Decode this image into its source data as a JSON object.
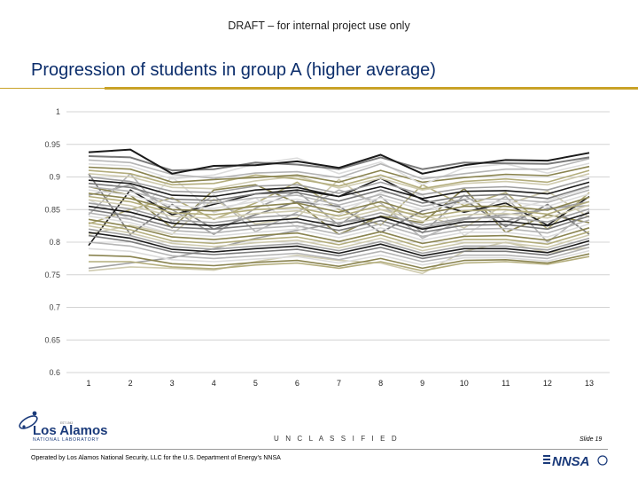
{
  "header": {
    "draft": "DRAFT – for internal project use only",
    "title": "Progression of students in group A (higher average)"
  },
  "footer": {
    "classification": "U N C L A S S I F I E D",
    "slide": "Slide 19",
    "operated_by": "Operated by Los Alamos National Security, LLC for the U.S. Department of Energy’s NNSA",
    "logo_text": "Los Alamos",
    "logo_sub": "NATIONAL LABORATORY",
    "logo_est": "EST 1943",
    "nnsa_text": "NNSA"
  },
  "colors": {
    "title": "#0b2d6b",
    "accent_rule": "#c9a227",
    "series_palette": [
      "#1a1a1a",
      "#7a7a7a",
      "#b5b5b5",
      "#dcdcdc",
      "#8a8450",
      "#b3ad7c",
      "#cfcbb0",
      "#a0a0a0"
    ]
  },
  "chart_data": {
    "type": "line",
    "title": "",
    "xlabel": "",
    "ylabel": "",
    "x": [
      1,
      2,
      3,
      4,
      5,
      6,
      7,
      8,
      9,
      10,
      11,
      12,
      13
    ],
    "ylim": [
      0.6,
      1.0
    ],
    "yticks": [
      "1",
      "0.95",
      "0.9",
      "0.85",
      "0.8",
      "0.75",
      "0.7",
      "0.65",
      "0.6"
    ],
    "xticks": [
      "1",
      "2",
      "3",
      "4",
      "5",
      "6",
      "7",
      "8",
      "9",
      "10",
      "11",
      "12",
      "13"
    ],
    "grid": true,
    "legend": "none",
    "series": [
      {
        "values": [
          0.938,
          0.942,
          0.905,
          0.917,
          0.918,
          0.924,
          0.914,
          0.934,
          0.905,
          0.918,
          0.926,
          0.925,
          0.937
        ]
      },
      {
        "values": [
          0.932,
          0.93,
          0.91,
          0.912,
          0.922,
          0.919,
          0.912,
          0.93,
          0.912,
          0.922,
          0.921,
          0.92,
          0.93
        ]
      },
      {
        "values": [
          0.926,
          0.922,
          0.904,
          0.898,
          0.906,
          0.908,
          0.899,
          0.92,
          0.897,
          0.905,
          0.912,
          0.912,
          0.928
        ]
      },
      {
        "values": [
          0.92,
          0.917,
          0.897,
          0.903,
          0.92,
          0.929,
          0.905,
          0.923,
          0.888,
          0.914,
          0.92,
          0.906,
          0.921
        ]
      },
      {
        "values": [
          0.915,
          0.912,
          0.892,
          0.896,
          0.899,
          0.903,
          0.892,
          0.91,
          0.892,
          0.899,
          0.904,
          0.902,
          0.916
        ]
      },
      {
        "values": [
          0.91,
          0.905,
          0.888,
          0.89,
          0.903,
          0.897,
          0.886,
          0.903,
          0.882,
          0.893,
          0.897,
          0.892,
          0.91
        ]
      },
      {
        "values": [
          0.905,
          0.9,
          0.884,
          0.882,
          0.894,
          0.901,
          0.883,
          0.898,
          0.88,
          0.89,
          0.893,
          0.888,
          0.905
        ]
      },
      {
        "values": [
          0.9,
          0.893,
          0.878,
          0.876,
          0.886,
          0.888,
          0.875,
          0.892,
          0.873,
          0.883,
          0.885,
          0.88,
          0.898
        ]
      },
      {
        "values": [
          0.895,
          0.89,
          0.872,
          0.87,
          0.88,
          0.884,
          0.87,
          0.885,
          0.867,
          0.878,
          0.879,
          0.874,
          0.892
        ]
      },
      {
        "values": [
          0.89,
          0.884,
          0.866,
          0.864,
          0.874,
          0.876,
          0.863,
          0.88,
          0.86,
          0.871,
          0.873,
          0.867,
          0.886
        ]
      },
      {
        "values": [
          0.885,
          0.878,
          0.861,
          0.86,
          0.868,
          0.872,
          0.857,
          0.873,
          0.855,
          0.866,
          0.866,
          0.861,
          0.88
        ]
      },
      {
        "values": [
          0.88,
          0.872,
          0.856,
          0.852,
          0.862,
          0.866,
          0.852,
          0.868,
          0.85,
          0.86,
          0.862,
          0.855,
          0.874
        ]
      },
      {
        "values": [
          0.875,
          0.867,
          0.85,
          0.848,
          0.855,
          0.86,
          0.846,
          0.862,
          0.843,
          0.855,
          0.855,
          0.849,
          0.869
        ]
      },
      {
        "values": [
          0.87,
          0.862,
          0.845,
          0.842,
          0.85,
          0.853,
          0.84,
          0.856,
          0.838,
          0.848,
          0.85,
          0.843,
          0.862
        ]
      },
      {
        "values": [
          0.865,
          0.856,
          0.84,
          0.836,
          0.844,
          0.848,
          0.835,
          0.85,
          0.832,
          0.842,
          0.844,
          0.837,
          0.857
        ]
      },
      {
        "values": [
          0.86,
          0.851,
          0.834,
          0.83,
          0.838,
          0.842,
          0.829,
          0.845,
          0.826,
          0.837,
          0.838,
          0.831,
          0.851
        ]
      },
      {
        "values": [
          0.855,
          0.846,
          0.829,
          0.825,
          0.832,
          0.836,
          0.824,
          0.839,
          0.82,
          0.831,
          0.832,
          0.825,
          0.845
        ]
      },
      {
        "values": [
          0.85,
          0.84,
          0.823,
          0.82,
          0.826,
          0.831,
          0.818,
          0.833,
          0.815,
          0.826,
          0.827,
          0.82,
          0.84
        ]
      },
      {
        "values": [
          0.845,
          0.835,
          0.818,
          0.814,
          0.821,
          0.825,
          0.812,
          0.828,
          0.809,
          0.82,
          0.821,
          0.814,
          0.834
        ]
      },
      {
        "values": [
          0.84,
          0.83,
          0.813,
          0.809,
          0.815,
          0.82,
          0.807,
          0.822,
          0.803,
          0.815,
          0.815,
          0.808,
          0.828
        ]
      },
      {
        "values": [
          0.835,
          0.824,
          0.808,
          0.804,
          0.81,
          0.814,
          0.801,
          0.816,
          0.798,
          0.809,
          0.81,
          0.803,
          0.822
        ]
      },
      {
        "values": [
          0.83,
          0.819,
          0.802,
          0.798,
          0.804,
          0.808,
          0.796,
          0.811,
          0.792,
          0.804,
          0.804,
          0.797,
          0.816
        ]
      },
      {
        "values": [
          0.825,
          0.814,
          0.798,
          0.793,
          0.799,
          0.803,
          0.791,
          0.806,
          0.787,
          0.799,
          0.799,
          0.792,
          0.811
        ]
      },
      {
        "values": [
          0.82,
          0.81,
          0.793,
          0.789,
          0.794,
          0.798,
          0.787,
          0.801,
          0.783,
          0.794,
          0.794,
          0.788,
          0.806
        ]
      },
      {
        "values": [
          0.815,
          0.806,
          0.789,
          0.785,
          0.79,
          0.794,
          0.783,
          0.797,
          0.779,
          0.79,
          0.79,
          0.784,
          0.802
        ]
      },
      {
        "values": [
          0.81,
          0.801,
          0.785,
          0.781,
          0.785,
          0.789,
          0.779,
          0.792,
          0.775,
          0.786,
          0.786,
          0.78,
          0.797
        ]
      },
      {
        "values": [
          0.8,
          0.794,
          0.779,
          0.775,
          0.779,
          0.783,
          0.773,
          0.786,
          0.77,
          0.78,
          0.78,
          0.775,
          0.792
        ]
      },
      {
        "values": [
          0.79,
          0.786,
          0.773,
          0.77,
          0.774,
          0.778,
          0.768,
          0.78,
          0.765,
          0.776,
          0.776,
          0.771,
          0.787
        ]
      },
      {
        "values": [
          0.78,
          0.778,
          0.767,
          0.764,
          0.769,
          0.772,
          0.763,
          0.775,
          0.76,
          0.772,
          0.773,
          0.768,
          0.782
        ]
      },
      {
        "values": [
          0.77,
          0.77,
          0.762,
          0.759,
          0.765,
          0.768,
          0.76,
          0.77,
          0.756,
          0.768,
          0.77,
          0.766,
          0.778
        ]
      },
      {
        "values": [
          0.756,
          0.762,
          0.76,
          0.757,
          0.77,
          0.78,
          0.772,
          0.768,
          0.752,
          0.786,
          0.8,
          0.784,
          0.792
        ]
      },
      {
        "values": [
          0.76,
          0.768,
          0.776,
          0.79,
          0.806,
          0.818,
          0.83,
          0.838,
          0.822,
          0.835,
          0.842,
          0.85,
          0.862
        ]
      },
      {
        "values": [
          0.795,
          0.88,
          0.842,
          0.858,
          0.874,
          0.88,
          0.87,
          0.898,
          0.865,
          0.846,
          0.86,
          0.826,
          0.87
        ]
      },
      {
        "values": [
          0.905,
          0.812,
          0.858,
          0.82,
          0.842,
          0.862,
          0.855,
          0.815,
          0.848,
          0.865,
          0.824,
          0.858,
          0.812
        ]
      },
      {
        "values": [
          0.842,
          0.905,
          0.83,
          0.872,
          0.816,
          0.846,
          0.88,
          0.86,
          0.806,
          0.835,
          0.87,
          0.8,
          0.848
        ]
      },
      {
        "values": [
          0.865,
          0.835,
          0.9,
          0.845,
          0.868,
          0.822,
          0.842,
          0.876,
          0.872,
          0.81,
          0.848,
          0.864,
          0.884
        ]
      },
      {
        "values": [
          0.885,
          0.872,
          0.822,
          0.88,
          0.888,
          0.86,
          0.812,
          0.84,
          0.83,
          0.882,
          0.815,
          0.842,
          0.83
        ]
      },
      {
        "values": [
          0.828,
          0.85,
          0.868,
          0.835,
          0.86,
          0.892,
          0.85,
          0.826,
          0.888,
          0.856,
          0.876,
          0.82,
          0.876
        ]
      },
      {
        "values": [
          0.812,
          0.826,
          0.812,
          0.866,
          0.828,
          0.838,
          0.896,
          0.85,
          0.842,
          0.822,
          0.858,
          0.878,
          0.838
        ]
      },
      {
        "values": [
          0.872,
          0.888,
          0.85,
          0.812,
          0.852,
          0.878,
          0.826,
          0.87,
          0.814,
          0.872,
          0.832,
          0.852,
          0.856
        ]
      }
    ]
  }
}
